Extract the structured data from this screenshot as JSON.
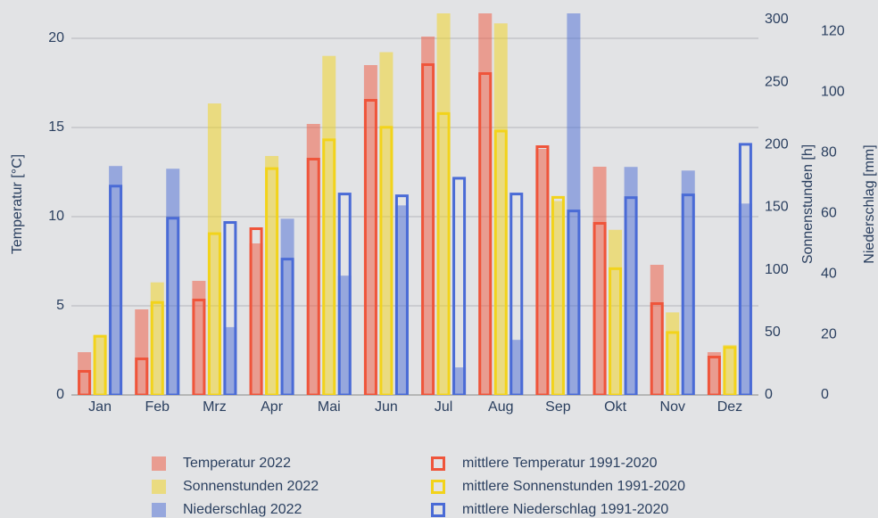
{
  "chart_data": {
    "type": "bar",
    "categories": [
      "Jan",
      "Feb",
      "Mrz",
      "Apr",
      "Mai",
      "Jun",
      "Jul",
      "Aug",
      "Sep",
      "Okt",
      "Nov",
      "Dez"
    ],
    "ylabel": "Temperatur [°C]",
    "y2label": "Sonnenstunden [h]",
    "y3label": "Niederschlag [mm]",
    "ylim": [
      0,
      21.4
    ],
    "yticks": [
      0,
      5,
      10,
      15,
      20
    ],
    "y2lim": [
      0,
      305
    ],
    "y2ticks": [
      0,
      50,
      100,
      150,
      200,
      250,
      300
    ],
    "y3lim": [
      0,
      126
    ],
    "y3ticks": [
      0,
      20,
      40,
      60,
      80,
      100,
      120
    ],
    "grid": true,
    "legend": "bottom",
    "series": [
      {
        "name": "Temperatur 2022",
        "color": "#ef553b",
        "style": "filled",
        "axis": "y",
        "values": [
          2.4,
          4.8,
          6.4,
          8.5,
          15.2,
          18.5,
          20.1,
          21.6,
          13.8,
          12.8,
          7.3,
          2.4
        ]
      },
      {
        "name": "Sonnenstunden 2022",
        "color": "#f2d31b",
        "style": "filled",
        "axis": "y2",
        "values": [
          47,
          90,
          233,
          191,
          271,
          274,
          310,
          297,
          155,
          132,
          66,
          40
        ]
      },
      {
        "name": "Niederschlag 2022",
        "color": "#4a6bd6",
        "style": "filled",
        "axis": "y3",
        "values": [
          75.6,
          74.7,
          22.4,
          58.2,
          39.4,
          62.6,
          9.1,
          18.2,
          128,
          75.3,
          74.1,
          63.2
        ]
      },
      {
        "name": "mittlere Temperatur 1991-2020",
        "color": "#ef553b",
        "style": "outline",
        "axis": "y",
        "values": [
          1.4,
          2.1,
          5.4,
          9.4,
          13.3,
          16.6,
          18.6,
          18.1,
          14.0,
          9.7,
          5.2,
          2.2
        ]
      },
      {
        "name": "mittlere Sonnenstunden 1991-2020",
        "color": "#f2d31b",
        "style": "outline",
        "axis": "y2",
        "values": [
          48,
          75,
          130,
          182,
          205,
          215,
          226,
          212,
          159,
          102,
          51,
          39
        ]
      },
      {
        "name": "mittlere Niederschlag 1991-2020",
        "color": "#4a6bd6",
        "style": "outline",
        "axis": "y3",
        "values": [
          69.4,
          58.8,
          57.4,
          45.3,
          66.8,
          66.2,
          72,
          66.8,
          61.2,
          65.6,
          66.5,
          83.2
        ]
      }
    ]
  }
}
